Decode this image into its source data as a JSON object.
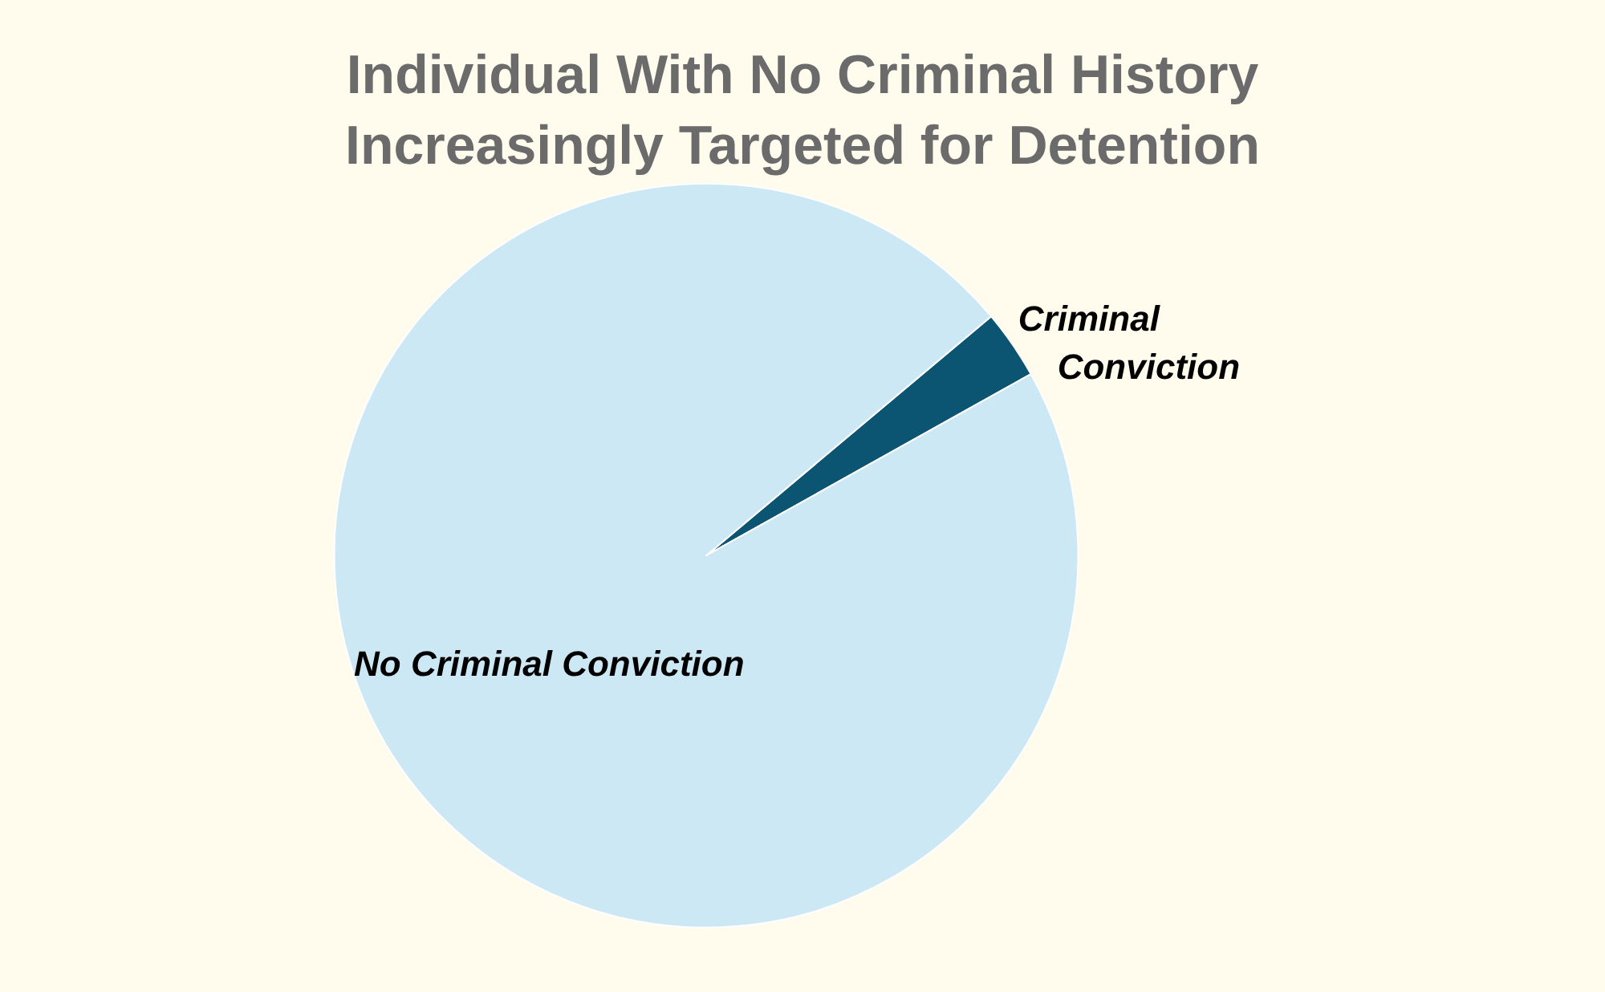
{
  "chart_data": {
    "type": "pie",
    "title": "Individual With No Criminal History\nIncreasingly Targeted for Detention",
    "categories": [
      "Criminal Conviction",
      "No Criminal Conviction"
    ],
    "values": [
      3,
      97
    ],
    "colors": [
      "#0b5572",
      "#cde8f5"
    ]
  }
}
